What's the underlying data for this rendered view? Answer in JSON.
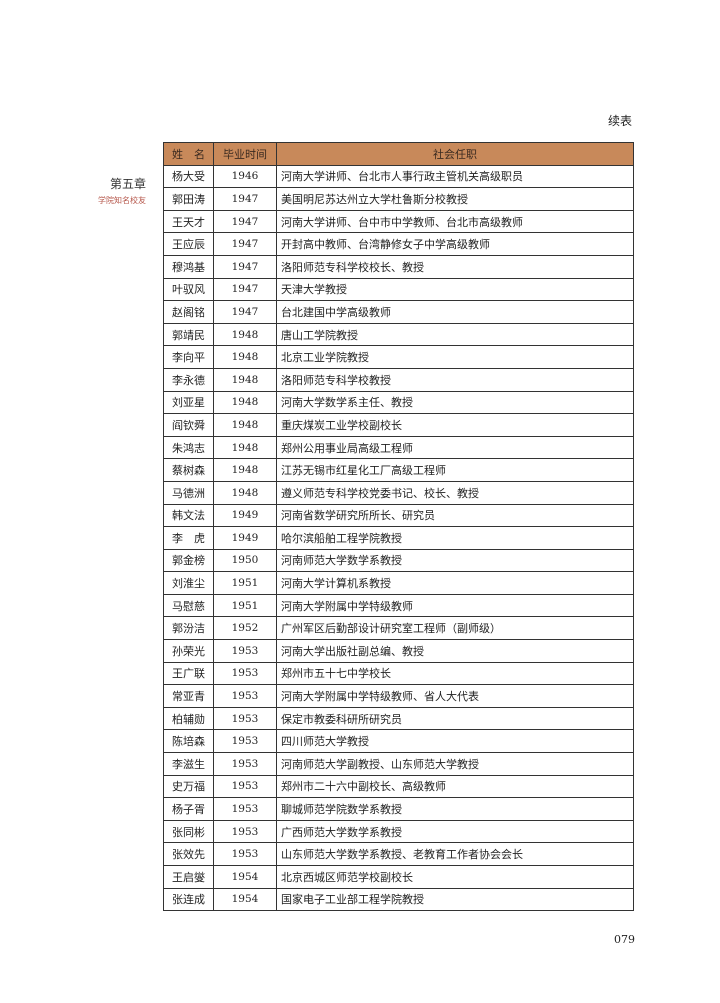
{
  "continued_label": "续表",
  "side": {
    "chapter": "第五章",
    "section": "学院知名校友"
  },
  "colors": {
    "header_bg": "#c8895a",
    "section_text": "#b5564a"
  },
  "table": {
    "headers": [
      "姓　名",
      "毕业时间",
      "社会任职"
    ],
    "rows": [
      [
        "杨大受",
        "1946",
        "河南大学讲师、台北市人事行政主管机关高级职员"
      ],
      [
        "郭田涛",
        "1947",
        "美国明尼苏达州立大学杜鲁斯分校教授"
      ],
      [
        "王天才",
        "1947",
        "河南大学讲师、台中市中学教师、台北市高级教师"
      ],
      [
        "王应辰",
        "1947",
        "开封高中教师、台湾静修女子中学高级教师"
      ],
      [
        "穆鸿基",
        "1947",
        "洛阳师范专科学校校长、教授"
      ],
      [
        "叶驭风",
        "1947",
        "天津大学教授"
      ],
      [
        "赵阁铭",
        "1947",
        "台北建国中学高级教师"
      ],
      [
        "郭靖民",
        "1948",
        "唐山工学院教授"
      ],
      [
        "李向平",
        "1948",
        "北京工业学院教授"
      ],
      [
        "李永德",
        "1948",
        "洛阳师范专科学校教授"
      ],
      [
        "刘亚星",
        "1948",
        "河南大学数学系主任、教授"
      ],
      [
        "阎钦舜",
        "1948",
        "重庆煤炭工业学校副校长"
      ],
      [
        "朱鸿志",
        "1948",
        "郑州公用事业局高级工程师"
      ],
      [
        "蔡树森",
        "1948",
        "江苏无锡市红星化工厂高级工程师"
      ],
      [
        "马德洲",
        "1948",
        "遵义师范专科学校党委书记、校长、教授"
      ],
      [
        "韩文法",
        "1949",
        "河南省数学研究所所长、研究员"
      ],
      [
        "李　虎",
        "1949",
        "哈尔滨船舶工程学院教授"
      ],
      [
        "郭金榜",
        "1950",
        "河南师范大学数学系教授"
      ],
      [
        "刘淮尘",
        "1951",
        "河南大学计算机系教授"
      ],
      [
        "马慰慈",
        "1951",
        "河南大学附属中学特级教师"
      ],
      [
        "郭汾洁",
        "1952",
        "广州军区后勤部设计研究室工程师（副师级）"
      ],
      [
        "孙荣光",
        "1953",
        "河南大学出版社副总编、教授"
      ],
      [
        "王广联",
        "1953",
        "郑州市五十七中学校长"
      ],
      [
        "常亚青",
        "1953",
        "河南大学附属中学特级教师、省人大代表"
      ],
      [
        "柏辅勋",
        "1953",
        "保定市教委科研所研究员"
      ],
      [
        "陈培森",
        "1953",
        "四川师范大学教授"
      ],
      [
        "李滋生",
        "1953",
        "河南师范大学副教授、山东师范大学教授"
      ],
      [
        "史万福",
        "1953",
        "郑州市二十六中副校长、高级教师"
      ],
      [
        "杨子胥",
        "1953",
        "聊城师范学院数学系教授"
      ],
      [
        "张同彬",
        "1953",
        "广西师范大学数学系教授"
      ],
      [
        "张效先",
        "1953",
        "山东师范大学数学系教授、老教育工作者协会会长"
      ],
      [
        "王启燮",
        "1954",
        "北京西城区师范学校副校长"
      ],
      [
        "张连成",
        "1954",
        "国家电子工业部工程学院教授"
      ]
    ]
  },
  "page_number": "079"
}
